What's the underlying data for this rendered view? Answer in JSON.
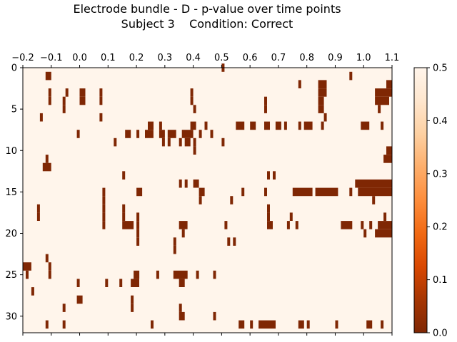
{
  "chart_data": {
    "type": "heatmap",
    "title": "Electrode bundle - D - p-value over time points",
    "subtitle": "Subject 3    Condition: Correct",
    "xlabel": "",
    "ylabel": "",
    "x_axis_position": "top",
    "xlim": [
      -0.2,
      1.1
    ],
    "ylim": [
      32,
      0
    ],
    "x_ticks": [
      "−0.2",
      "−0.1",
      "0.0",
      "0.1",
      "0.2",
      "0.3",
      "0.4",
      "0.5",
      "0.6",
      "0.7",
      "0.8",
      "0.9",
      "1.0",
      "1.1"
    ],
    "y_ticks": [
      "0",
      "5",
      "10",
      "15",
      "20",
      "25",
      "30"
    ],
    "rows": 32,
    "background_value": 0.5,
    "colormap": "Oranges_r",
    "colorbar": {
      "range": [
        0.0,
        0.5
      ],
      "ticks": [
        "0.0",
        "0.1",
        "0.2",
        "0.3",
        "0.4",
        "0.5"
      ],
      "colors": [
        "#7f2704",
        "#a63603",
        "#d94801",
        "#f16913",
        "#fd8d3c",
        "#fdae6b",
        "#fdd0a2",
        "#fee6ce",
        "#fff5eb"
      ]
    },
    "low_p_cells": [
      {
        "row": 0,
        "segments": [
          [
            0.5,
            0.51
          ]
        ]
      },
      {
        "row": 1,
        "segments": [
          [
            -0.12,
            -0.1
          ],
          [
            0.95,
            0.96
          ]
        ]
      },
      {
        "row": 2,
        "segments": [
          [
            0.77,
            0.78
          ],
          [
            0.84,
            0.87
          ],
          [
            1.08,
            1.1
          ]
        ]
      },
      {
        "row": 3,
        "segments": [
          [
            -0.11,
            -0.1
          ],
          [
            -0.05,
            -0.04
          ],
          [
            0.0,
            0.02
          ],
          [
            0.07,
            0.08
          ],
          [
            0.39,
            0.4
          ],
          [
            0.84,
            0.87
          ],
          [
            1.04,
            1.1
          ]
        ]
      },
      {
        "row": 4,
        "segments": [
          [
            -0.11,
            -0.1
          ],
          [
            -0.06,
            -0.05
          ],
          [
            0.0,
            0.02
          ],
          [
            0.07,
            0.08
          ],
          [
            0.39,
            0.4
          ],
          [
            0.65,
            0.66
          ],
          [
            0.84,
            0.86
          ],
          [
            1.04,
            1.09
          ]
        ]
      },
      {
        "row": 5,
        "segments": [
          [
            -0.06,
            -0.05
          ],
          [
            0.4,
            0.41
          ],
          [
            0.65,
            0.66
          ],
          [
            0.84,
            0.86
          ],
          [
            1.05,
            1.06
          ]
        ]
      },
      {
        "row": 6,
        "segments": [
          [
            -0.14,
            -0.13
          ],
          [
            0.07,
            0.08
          ],
          [
            0.86,
            0.87
          ]
        ]
      },
      {
        "row": 7,
        "segments": [
          [
            0.24,
            0.26
          ],
          [
            0.28,
            0.29
          ],
          [
            0.39,
            0.41
          ],
          [
            0.44,
            0.45
          ],
          [
            0.55,
            0.58
          ],
          [
            0.6,
            0.62
          ],
          [
            0.65,
            0.67
          ],
          [
            0.69,
            0.71
          ],
          [
            0.72,
            0.73
          ],
          [
            0.77,
            0.78
          ],
          [
            0.79,
            0.82
          ],
          [
            0.85,
            0.86
          ],
          [
            0.99,
            1.02
          ],
          [
            1.06,
            1.07
          ]
        ]
      },
      {
        "row": 8,
        "segments": [
          [
            -0.01,
            0.0
          ],
          [
            0.16,
            0.18
          ],
          [
            0.2,
            0.21
          ],
          [
            0.23,
            0.26
          ],
          [
            0.28,
            0.3
          ],
          [
            0.31,
            0.34
          ],
          [
            0.36,
            0.4
          ],
          [
            0.42,
            0.43
          ],
          [
            0.46,
            0.47
          ]
        ]
      },
      {
        "row": 9,
        "segments": [
          [
            0.12,
            0.13
          ],
          [
            0.29,
            0.3
          ],
          [
            0.31,
            0.32
          ],
          [
            0.35,
            0.36
          ],
          [
            0.37,
            0.39
          ],
          [
            0.4,
            0.41
          ],
          [
            0.5,
            0.51
          ]
        ]
      },
      {
        "row": 10,
        "segments": [
          [
            0.4,
            0.41
          ],
          [
            1.08,
            1.1
          ]
        ]
      },
      {
        "row": 11,
        "segments": [
          [
            -0.12,
            -0.11
          ],
          [
            1.07,
            1.1
          ]
        ]
      },
      {
        "row": 12,
        "segments": [
          [
            -0.13,
            -0.1
          ]
        ]
      },
      {
        "row": 13,
        "segments": [
          [
            0.15,
            0.16
          ],
          [
            0.66,
            0.67
          ],
          [
            0.68,
            0.69
          ]
        ]
      },
      {
        "row": 14,
        "segments": [
          [
            0.35,
            0.36
          ],
          [
            0.37,
            0.38
          ],
          [
            0.4,
            0.42
          ],
          [
            0.97,
            1.1
          ]
        ]
      },
      {
        "row": 15,
        "segments": [
          [
            0.08,
            0.09
          ],
          [
            0.2,
            0.22
          ],
          [
            0.42,
            0.44
          ],
          [
            0.57,
            0.58
          ],
          [
            0.65,
            0.66
          ],
          [
            0.75,
            0.82
          ],
          [
            0.83,
            0.91
          ],
          [
            0.95,
            0.96
          ],
          [
            0.98,
            1.1
          ]
        ]
      },
      {
        "row": 16,
        "segments": [
          [
            0.08,
            0.09
          ],
          [
            0.42,
            0.43
          ],
          [
            0.53,
            0.54
          ],
          [
            1.03,
            1.04
          ]
        ]
      },
      {
        "row": 17,
        "segments": [
          [
            -0.15,
            -0.14
          ],
          [
            0.08,
            0.09
          ],
          [
            0.15,
            0.16
          ],
          [
            0.66,
            0.67
          ]
        ]
      },
      {
        "row": 18,
        "segments": [
          [
            -0.15,
            -0.14
          ],
          [
            0.08,
            0.09
          ],
          [
            0.15,
            0.16
          ],
          [
            0.2,
            0.21
          ],
          [
            0.66,
            0.67
          ],
          [
            0.74,
            0.75
          ],
          [
            1.07,
            1.08
          ]
        ]
      },
      {
        "row": 19,
        "segments": [
          [
            0.08,
            0.09
          ],
          [
            0.15,
            0.19
          ],
          [
            0.2,
            0.21
          ],
          [
            0.35,
            0.38
          ],
          [
            0.51,
            0.52
          ],
          [
            0.66,
            0.68
          ],
          [
            0.73,
            0.74
          ],
          [
            0.76,
            0.77
          ],
          [
            0.92,
            0.96
          ],
          [
            0.99,
            1.0
          ],
          [
            1.02,
            1.03
          ],
          [
            1.05,
            1.1
          ]
        ]
      },
      {
        "row": 20,
        "segments": [
          [
            0.2,
            0.21
          ],
          [
            0.36,
            0.37
          ],
          [
            1.0,
            1.01
          ],
          [
            1.04,
            1.1
          ]
        ]
      },
      {
        "row": 21,
        "segments": [
          [
            0.2,
            0.21
          ],
          [
            0.33,
            0.34
          ],
          [
            0.52,
            0.53
          ],
          [
            0.54,
            0.55
          ]
        ]
      },
      {
        "row": 22,
        "segments": [
          [
            0.33,
            0.34
          ]
        ]
      },
      {
        "row": 23,
        "segments": [
          [
            -0.12,
            -0.11
          ]
        ]
      },
      {
        "row": 24,
        "segments": [
          [
            -0.2,
            -0.17
          ],
          [
            -0.11,
            -0.1
          ]
        ]
      },
      {
        "row": 25,
        "segments": [
          [
            -0.19,
            -0.18
          ],
          [
            -0.11,
            -0.1
          ],
          [
            0.19,
            0.21
          ],
          [
            0.27,
            0.28
          ],
          [
            0.33,
            0.38
          ],
          [
            0.41,
            0.42
          ],
          [
            0.47,
            0.48
          ]
        ]
      },
      {
        "row": 26,
        "segments": [
          [
            -0.01,
            0.0
          ],
          [
            0.09,
            0.1
          ],
          [
            0.14,
            0.15
          ],
          [
            0.18,
            0.21
          ],
          [
            0.35,
            0.37
          ]
        ]
      },
      {
        "row": 27,
        "segments": [
          [
            -0.17,
            -0.16
          ]
        ]
      },
      {
        "row": 28,
        "segments": [
          [
            -0.01,
            0.01
          ],
          [
            0.18,
            0.19
          ]
        ]
      },
      {
        "row": 29,
        "segments": [
          [
            -0.06,
            -0.05
          ],
          [
            0.18,
            0.19
          ],
          [
            0.35,
            0.36
          ]
        ]
      },
      {
        "row": 30,
        "segments": [
          [
            0.35,
            0.37
          ],
          [
            0.47,
            0.48
          ]
        ]
      },
      {
        "row": 31,
        "segments": [
          [
            -0.12,
            -0.11
          ],
          [
            -0.06,
            -0.05
          ],
          [
            0.25,
            0.26
          ],
          [
            0.56,
            0.58
          ],
          [
            0.6,
            0.61
          ],
          [
            0.63,
            0.69
          ],
          [
            0.77,
            0.79
          ],
          [
            0.8,
            0.81
          ],
          [
            0.9,
            0.91
          ],
          [
            1.01,
            1.03
          ],
          [
            1.06,
            1.07
          ]
        ]
      }
    ]
  }
}
